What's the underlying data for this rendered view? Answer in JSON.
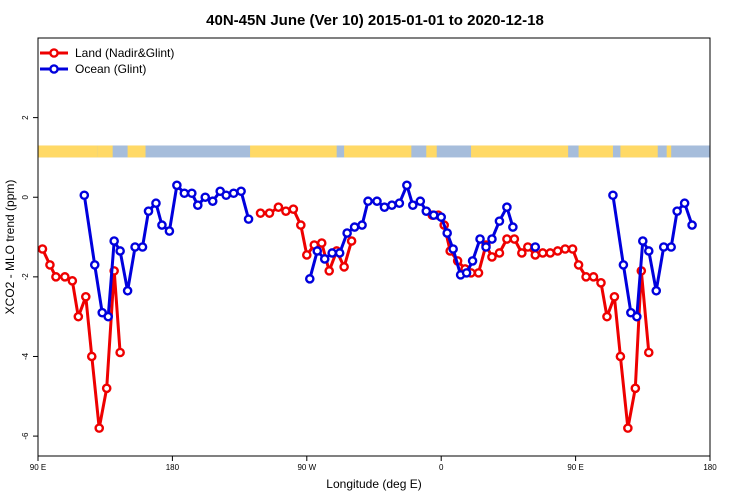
{
  "chart_data": {
    "type": "line",
    "title": "40N-45N June (Ver 10)   2015-01-01 to 2020-12-18",
    "xlabel": "Longitude (deg E)",
    "ylabel": "XCO2 - MLO trend (ppm)",
    "x_ticks": [
      {
        "value": 90,
        "label": "90 E"
      },
      {
        "value": 180,
        "label": "180"
      },
      {
        "value": 270,
        "label": "90 W"
      },
      {
        "value": 360,
        "label": "0"
      },
      {
        "value": 450,
        "label": "90 E"
      },
      {
        "value": 540,
        "label": "180"
      }
    ],
    "y_ticks": [
      {
        "value": -6,
        "label": "-6"
      },
      {
        "value": -4,
        "label": "-4"
      },
      {
        "value": -2,
        "label": "-2"
      },
      {
        "value": 0,
        "label": "0"
      },
      {
        "value": 2,
        "label": "2"
      }
    ],
    "xlim": [
      90,
      540
    ],
    "ylim": [
      -6.5,
      4
    ],
    "legend_position": "top-left",
    "land_ocean_band": {
      "y_range": [
        1.0,
        1.3
      ],
      "land_color": "#FFD966",
      "ocean_color": "#A6BDDB",
      "land_intervals": [
        [
          90,
          130
        ],
        [
          130,
          140
        ],
        [
          150,
          162
        ],
        [
          232,
          290
        ],
        [
          295,
          340
        ],
        [
          350,
          357
        ],
        [
          380,
          445
        ],
        [
          452,
          475
        ],
        [
          480,
          505
        ],
        [
          511,
          514
        ]
      ]
    },
    "series": [
      {
        "name": "Land (Nadir&Glint)",
        "color": "#EE0000",
        "points": [
          [
            93,
            -1.3
          ],
          [
            98,
            -1.7
          ],
          [
            102,
            -2.0
          ],
          [
            108,
            -2.0
          ],
          [
            113,
            -2.1
          ],
          [
            117,
            -3.0
          ],
          [
            122,
            -2.5
          ],
          [
            126,
            -4.0
          ],
          [
            131,
            -5.8
          ],
          [
            136,
            -4.8
          ],
          [
            141,
            -1.85
          ],
          [
            145,
            -3.9
          ],
          [
            239,
            -0.4
          ],
          [
            245,
            -0.4
          ],
          [
            251,
            -0.25
          ],
          [
            256,
            -0.35
          ],
          [
            261,
            -0.3
          ],
          [
            266,
            -0.7
          ],
          [
            270,
            -1.45
          ],
          [
            275,
            -1.2
          ],
          [
            280,
            -1.15
          ],
          [
            285,
            -1.85
          ],
          [
            290,
            -1.35
          ],
          [
            295,
            -1.75
          ],
          [
            300,
            -1.1
          ],
          [
            354,
            -0.45
          ],
          [
            358,
            -0.45
          ],
          [
            362,
            -0.7
          ],
          [
            366,
            -1.35
          ],
          [
            371,
            -1.6
          ],
          [
            376,
            -1.8
          ],
          [
            380,
            -1.9
          ],
          [
            385,
            -1.9
          ],
          [
            390,
            -1.2
          ],
          [
            394,
            -1.5
          ],
          [
            399,
            -1.4
          ],
          [
            404,
            -1.05
          ],
          [
            409,
            -1.05
          ],
          [
            414,
            -1.4
          ],
          [
            418,
            -1.25
          ],
          [
            423,
            -1.45
          ],
          [
            428,
            -1.4
          ],
          [
            433,
            -1.4
          ],
          [
            438,
            -1.35
          ],
          [
            443,
            -1.3
          ],
          [
            448,
            -1.3
          ],
          [
            452,
            -1.7
          ],
          [
            457,
            -2.0
          ],
          [
            462,
            -2.0
          ],
          [
            467,
            -2.15
          ],
          [
            471,
            -3.0
          ],
          [
            476,
            -2.5
          ],
          [
            480,
            -4.0
          ],
          [
            485,
            -5.8
          ],
          [
            490,
            -4.8
          ],
          [
            494,
            -1.85
          ],
          [
            499,
            -3.9
          ]
        ]
      },
      {
        "name": "Ocean (Glint)",
        "color": "#0000DD",
        "points": [
          [
            121,
            0.05
          ],
          [
            128,
            -1.7
          ],
          [
            133,
            -2.9
          ],
          [
            137,
            -3.0
          ],
          [
            141,
            -1.1
          ],
          [
            145,
            -1.35
          ],
          [
            150,
            -2.35
          ],
          [
            155,
            -1.25
          ],
          [
            160,
            -1.25
          ],
          [
            164,
            -0.35
          ],
          [
            169,
            -0.15
          ],
          [
            173,
            -0.7
          ],
          [
            178,
            -0.85
          ],
          [
            183,
            0.3
          ],
          [
            188,
            0.1
          ],
          [
            193,
            0.1
          ],
          [
            197,
            -0.2
          ],
          [
            202,
            0.0
          ],
          [
            207,
            -0.1
          ],
          [
            212,
            0.15
          ],
          [
            216,
            0.05
          ],
          [
            221,
            0.1
          ],
          [
            226,
            0.15
          ],
          [
            231,
            -0.55
          ],
          [
            272,
            -2.05
          ],
          [
            277,
            -1.35
          ],
          [
            282,
            -1.55
          ],
          [
            287,
            -1.4
          ],
          [
            292,
            -1.4
          ],
          [
            297,
            -0.9
          ],
          [
            302,
            -0.75
          ],
          [
            307,
            -0.7
          ],
          [
            311,
            -0.1
          ],
          [
            317,
            -0.1
          ],
          [
            322,
            -0.25
          ],
          [
            327,
            -0.2
          ],
          [
            332,
            -0.15
          ],
          [
            337,
            0.3
          ],
          [
            341,
            -0.2
          ],
          [
            346,
            -0.1
          ],
          [
            350,
            -0.35
          ],
          [
            355,
            -0.45
          ],
          [
            360,
            -0.5
          ],
          [
            364,
            -0.9
          ],
          [
            368,
            -1.3
          ],
          [
            373,
            -1.95
          ],
          [
            377,
            -1.9
          ],
          [
            381,
            -1.6
          ],
          [
            386,
            -1.05
          ],
          [
            390,
            -1.25
          ],
          [
            394,
            -1.05
          ],
          [
            399,
            -0.6
          ],
          [
            404,
            -0.25
          ],
          [
            408,
            -0.75
          ],
          [
            423,
            -1.25
          ],
          [
            475,
            0.05
          ],
          [
            482,
            -1.7
          ],
          [
            487,
            -2.9
          ],
          [
            491,
            -3.0
          ],
          [
            495,
            -1.1
          ],
          [
            499,
            -1.35
          ],
          [
            504,
            -2.35
          ],
          [
            509,
            -1.25
          ],
          [
            514,
            -1.25
          ],
          [
            518,
            -0.35
          ],
          [
            523,
            -0.15
          ],
          [
            528,
            -0.7
          ]
        ]
      }
    ]
  }
}
